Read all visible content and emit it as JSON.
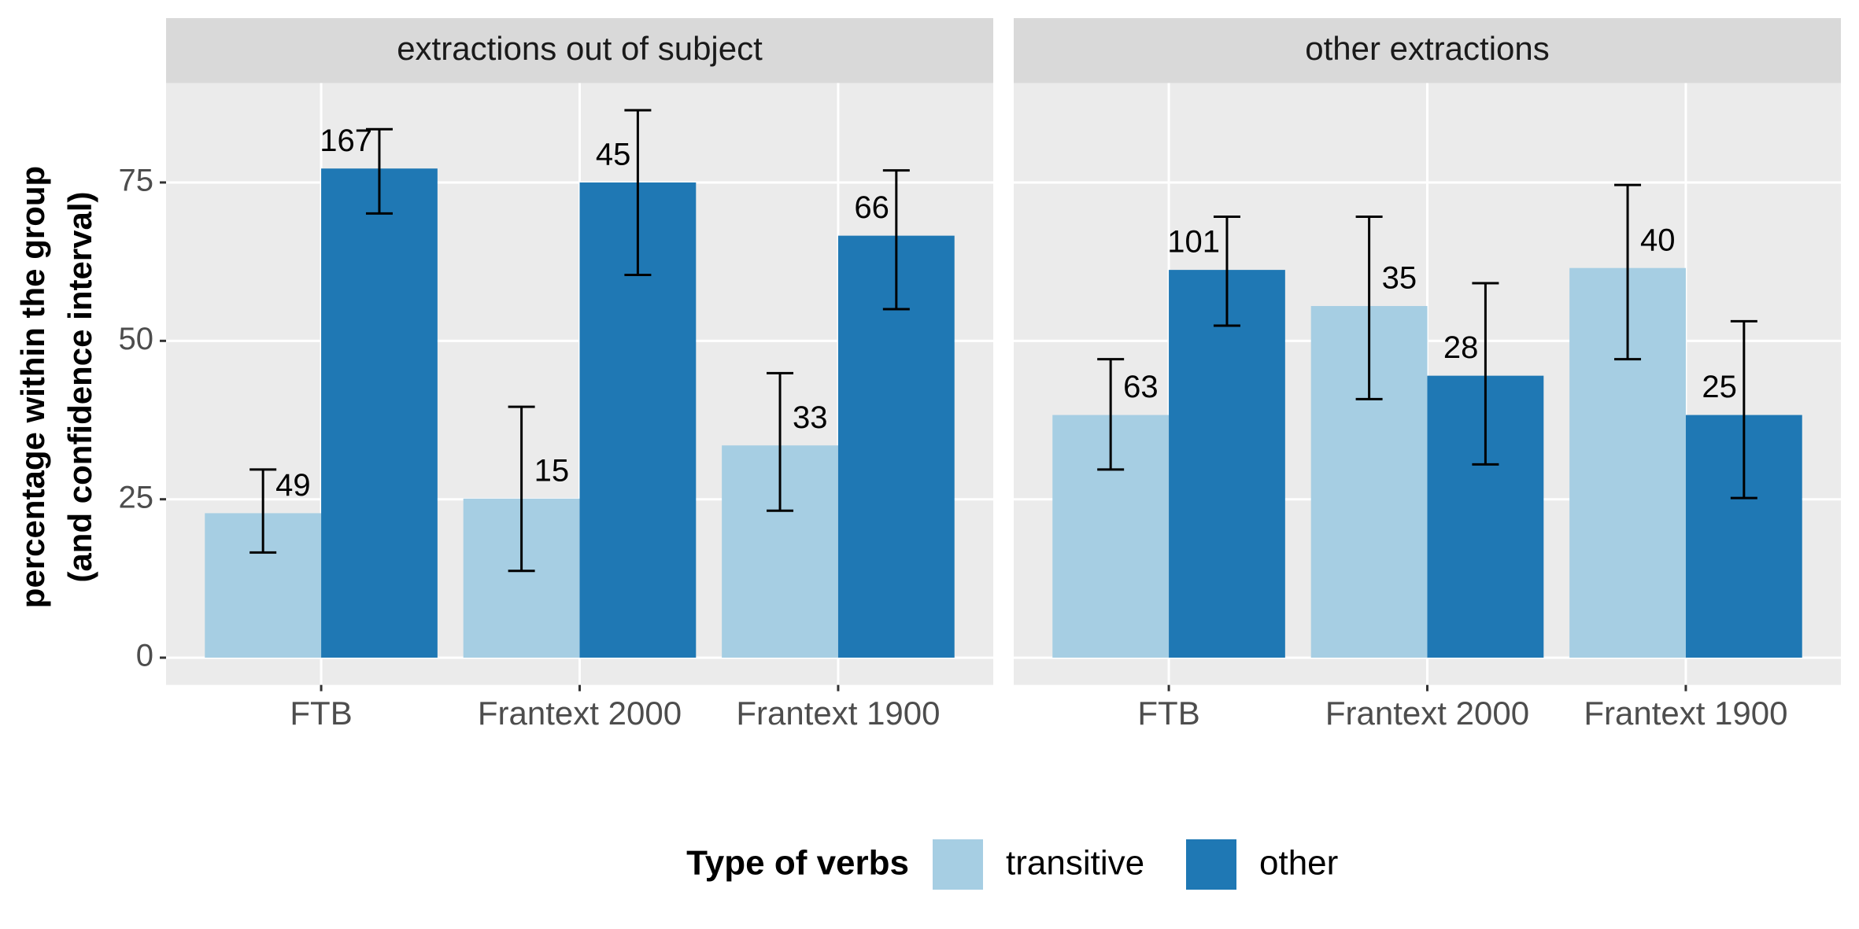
{
  "chart_data": {
    "type": "bar",
    "y_label": [
      "percentage within the group",
      "(and confidence interval)"
    ],
    "legend_title": "Type of verbs",
    "categories": [
      "FTB",
      "Frantext 2000",
      "Frantext 1900"
    ],
    "ylim": [
      -4.3,
      90.7
    ],
    "yticks": [
      0,
      25,
      50,
      75
    ],
    "grid": true,
    "series": [
      {
        "name": "transitive",
        "color": "#a6cee3"
      },
      {
        "name": "other",
        "color": "#1f78b4"
      }
    ],
    "facets": [
      {
        "title": "extractions out of subject",
        "series": [
          {
            "values": [
              22.8,
              25.1,
              33.5
            ],
            "ci_low": [
              16.6,
              13.7,
              23.2
            ],
            "ci_high": [
              29.7,
              39.6,
              44.9
            ],
            "counts": [
              49,
              15,
              33
            ]
          },
          {
            "values": [
              77.2,
              75,
              66.6
            ],
            "ci_low": [
              70.1,
              60.4,
              55
            ],
            "ci_high": [
              83.4,
              86.4,
              76.9
            ],
            "counts": [
              167,
              45,
              66
            ]
          }
        ]
      },
      {
        "title": "other extractions",
        "series": [
          {
            "values": [
              38.3,
              55.5,
              61.5
            ],
            "ci_low": [
              29.7,
              40.8,
              47.1
            ],
            "ci_high": [
              47.1,
              69.6,
              74.6
            ],
            "counts": [
              63,
              35,
              40
            ]
          },
          {
            "values": [
              61.2,
              44.5,
              38.3
            ],
            "ci_low": [
              52.4,
              30.5,
              25.2
            ],
            "ci_high": [
              69.6,
              59.1,
              53.1
            ],
            "counts": [
              101,
              28,
              25
            ]
          }
        ]
      }
    ]
  }
}
